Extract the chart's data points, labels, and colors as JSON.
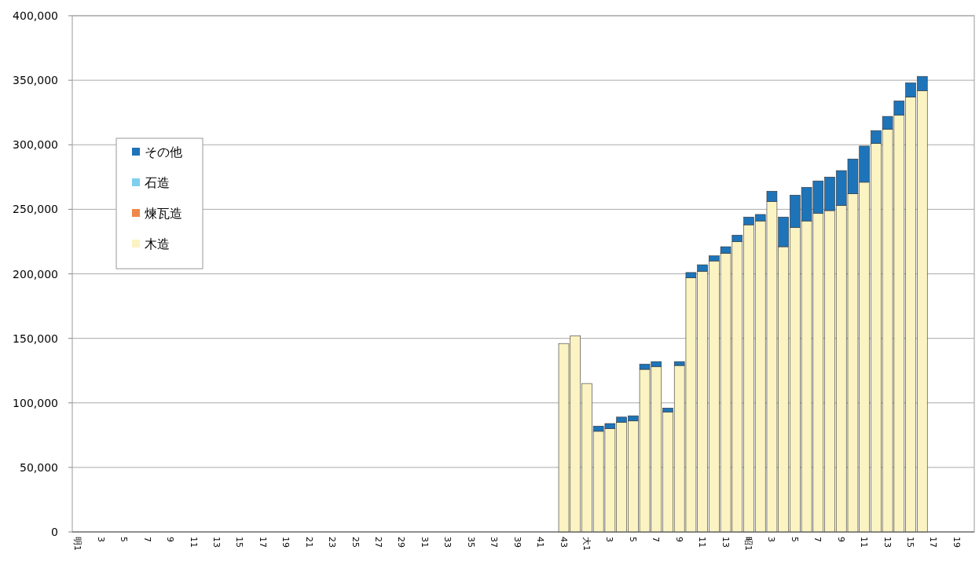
{
  "chart_data": {
    "type": "bar",
    "stacked": true,
    "grid": "y",
    "legend": "left",
    "ylim": [
      0,
      400000
    ],
    "yticks": [
      {
        "value": 0,
        "label": "0"
      },
      {
        "value": 50000,
        "label": "50,000"
      },
      {
        "value": 100000,
        "label": "100,000"
      },
      {
        "value": 150000,
        "label": "150,000"
      },
      {
        "value": 200000,
        "label": "200,000"
      },
      {
        "value": 250000,
        "label": "250,000"
      },
      {
        "value": 300000,
        "label": "300,000"
      },
      {
        "value": 350000,
        "label": "350,000"
      },
      {
        "value": 400000,
        "label": "400,000"
      }
    ],
    "categories": [
      "明1",
      null,
      "3",
      null,
      "5",
      null,
      "7",
      null,
      "9",
      null,
      "11",
      null,
      "13",
      null,
      "15",
      null,
      "17",
      null,
      "19",
      null,
      "21",
      null,
      "23",
      null,
      "25",
      null,
      "27",
      null,
      "29",
      null,
      "31",
      null,
      "33",
      null,
      "35",
      null,
      "37",
      null,
      "39",
      null,
      "41",
      null,
      "43",
      null,
      "大1",
      null,
      "3",
      null,
      "5",
      null,
      "7",
      null,
      "9",
      null,
      "11",
      null,
      "13",
      null,
      "昭1",
      null,
      "3",
      null,
      "5",
      null,
      "7",
      null,
      "9",
      null,
      "11",
      null,
      "13",
      null,
      "15",
      null,
      "17",
      null,
      "19",
      null
    ],
    "series": [
      {
        "name": "木造",
        "color": "#fbf3c2",
        "values": [
          null,
          null,
          null,
          null,
          null,
          null,
          null,
          null,
          null,
          null,
          null,
          null,
          null,
          null,
          null,
          null,
          null,
          null,
          null,
          null,
          null,
          null,
          null,
          null,
          null,
          null,
          null,
          null,
          null,
          null,
          null,
          null,
          null,
          null,
          null,
          null,
          null,
          null,
          null,
          null,
          null,
          null,
          146000,
          152000,
          115000,
          78000,
          80000,
          85000,
          86000,
          126000,
          128000,
          93000,
          129000,
          197000,
          202000,
          210000,
          216000,
          225000,
          238000,
          241000,
          256000,
          221000,
          236000,
          241000,
          247000,
          249000,
          253000,
          262000,
          271000,
          301000,
          312000,
          323000,
          337000,
          342000,
          null,
          null,
          null,
          null
        ]
      },
      {
        "name": "煉瓦造",
        "color": "#f0874a",
        "values": [
          null,
          null,
          null,
          null,
          null,
          null,
          null,
          null,
          null,
          null,
          null,
          null,
          null,
          null,
          null,
          null,
          null,
          null,
          null,
          null,
          null,
          null,
          null,
          null,
          null,
          null,
          null,
          null,
          null,
          null,
          null,
          null,
          null,
          null,
          null,
          null,
          null,
          null,
          null,
          null,
          null,
          null,
          null,
          null,
          null,
          null,
          null,
          null,
          null,
          null,
          null,
          null,
          null,
          null,
          null,
          null,
          null,
          null,
          null,
          null,
          null,
          null,
          null,
          null,
          null,
          null,
          null,
          null,
          null,
          null,
          null,
          null,
          null,
          null,
          null,
          null,
          null,
          null
        ]
      },
      {
        "name": "石造",
        "color": "#7fd0ee",
        "values": [
          null,
          null,
          null,
          null,
          null,
          null,
          null,
          null,
          null,
          null,
          null,
          null,
          null,
          null,
          null,
          null,
          null,
          null,
          null,
          null,
          null,
          null,
          null,
          null,
          null,
          null,
          null,
          null,
          null,
          null,
          null,
          null,
          null,
          null,
          null,
          null,
          null,
          null,
          null,
          null,
          null,
          null,
          null,
          null,
          null,
          null,
          null,
          null,
          null,
          null,
          null,
          null,
          null,
          null,
          null,
          null,
          null,
          null,
          null,
          null,
          null,
          null,
          null,
          null,
          null,
          null,
          null,
          null,
          null,
          null,
          null,
          null,
          null,
          null,
          null,
          null,
          null,
          null
        ]
      },
      {
        "name": "その他",
        "color": "#1e74b8",
        "values": [
          null,
          null,
          null,
          null,
          null,
          null,
          null,
          null,
          null,
          null,
          null,
          null,
          null,
          null,
          null,
          null,
          null,
          null,
          null,
          null,
          null,
          null,
          null,
          null,
          null,
          null,
          null,
          null,
          null,
          null,
          null,
          null,
          null,
          null,
          null,
          null,
          null,
          null,
          null,
          null,
          null,
          null,
          null,
          null,
          null,
          4000,
          4000,
          4000,
          4000,
          4000,
          4000,
          3000,
          3000,
          4000,
          5000,
          4000,
          5000,
          5000,
          6000,
          5000,
          8000,
          23000,
          25000,
          26000,
          25000,
          26000,
          27000,
          27000,
          28000,
          10000,
          10000,
          11000,
          11000,
          11000,
          null,
          null,
          null,
          null
        ]
      }
    ]
  }
}
